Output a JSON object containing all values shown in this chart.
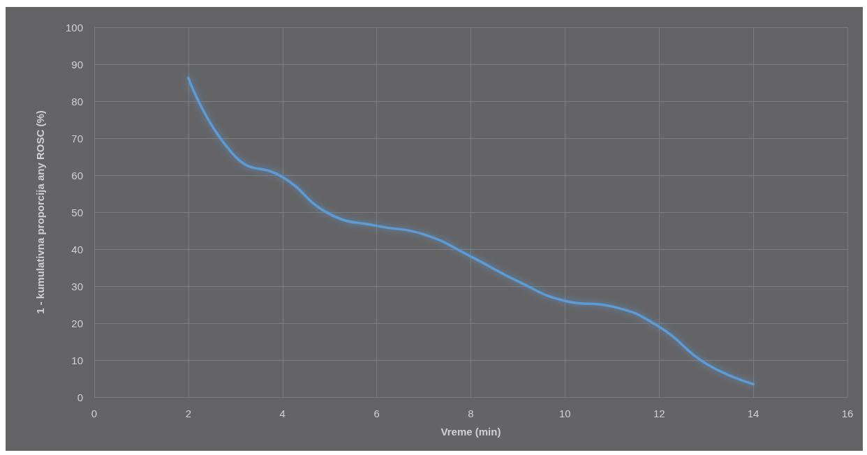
{
  "chart_data": {
    "type": "line",
    "xlabel": "Vreme (min)",
    "ylabel": "1 - kumulativna proporcija any ROSC (%)",
    "x": [
      2,
      3,
      4,
      5,
      6,
      7,
      8,
      9,
      10,
      11,
      12,
      13,
      14
    ],
    "series": [
      {
        "color": "#5b9bd5",
        "values": [
          86.3,
          65,
          59.5,
          49.5,
          46.3,
          44,
          38,
          31.3,
          26,
          24.5,
          19,
          9,
          3.5
        ]
      }
    ],
    "xlim": [
      0,
      16
    ],
    "xticks": [
      0,
      2,
      4,
      6,
      8,
      10,
      12,
      14,
      16
    ],
    "ylim": [
      0,
      100
    ],
    "yticks": [
      0,
      10,
      20,
      30,
      40,
      50,
      60,
      70,
      80,
      90,
      100
    ],
    "grid": true,
    "marker": "none",
    "line_style": "solid"
  }
}
